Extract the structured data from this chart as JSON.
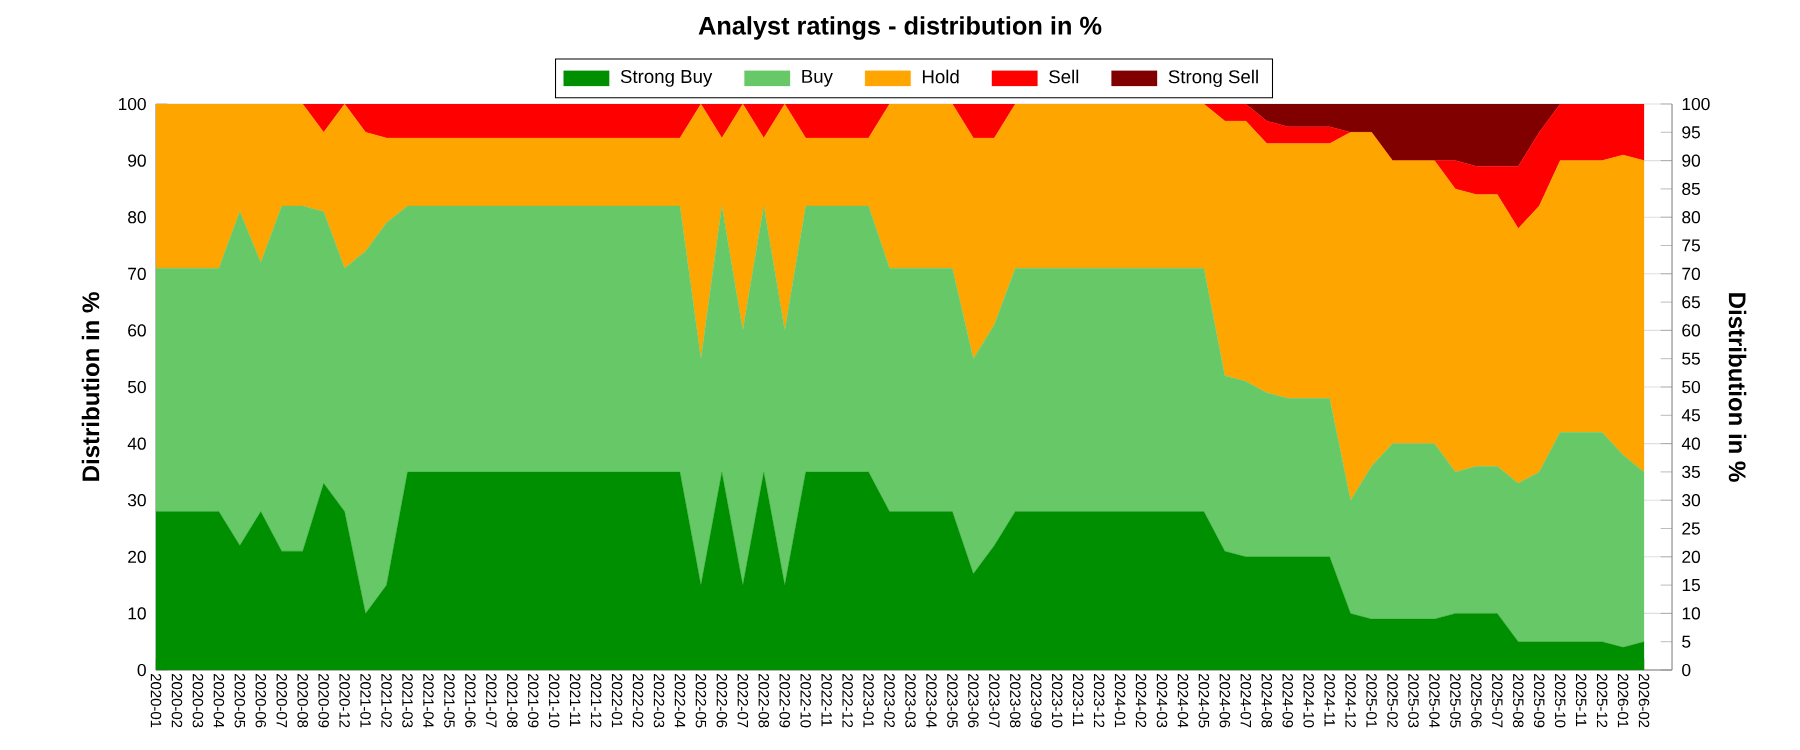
{
  "chart_data": {
    "type": "area",
    "stacked": true,
    "title": "Analyst ratings - distribution in %",
    "ylabel": "Distribution in %",
    "y2label": "Distribution in %",
    "categories": [
      "2020-01",
      "2020-02",
      "2020-03",
      "2020-04",
      "2020-05",
      "2020-06",
      "2020-07",
      "2020-08",
      "2020-09",
      "2020-12",
      "2021-01",
      "2021-02",
      "2021-03",
      "2021-04",
      "2021-05",
      "2021-06",
      "2021-07",
      "2021-08",
      "2021-09",
      "2021-10",
      "2021-11",
      "2021-12",
      "2022-01",
      "2022-02",
      "2022-03",
      "2022-04",
      "2022-05",
      "2022-06",
      "2022-07",
      "2022-08",
      "2022-09",
      "2022-10",
      "2022-11",
      "2022-12",
      "2023-01",
      "2023-02",
      "2023-03",
      "2023-04",
      "2023-05",
      "2023-06",
      "2023-07",
      "2023-08",
      "2023-09",
      "2023-10",
      "2023-11",
      "2023-12",
      "2024-01",
      "2024-02",
      "2024-03",
      "2024-04",
      "2024-05",
      "2024-06",
      "2024-07",
      "2024-08",
      "2024-09",
      "2024-10",
      "2024-11",
      "2024-12",
      "2025-01",
      "2025-02",
      "2025-03",
      "2025-04",
      "2025-05",
      "2025-06",
      "2025-07",
      "2025-08",
      "2025-09",
      "2025-10",
      "2025-11",
      "2025-12",
      "2026-01",
      "2026-02"
    ],
    "series": [
      {
        "name": "Strong Buy",
        "color": "#008f00",
        "values": [
          28,
          28,
          28,
          28,
          22,
          28,
          21,
          21,
          33,
          28,
          10,
          15,
          35,
          35,
          35,
          35,
          35,
          35,
          35,
          35,
          35,
          35,
          35,
          35,
          35,
          35,
          15,
          35,
          15,
          35,
          15,
          35,
          35,
          35,
          35,
          28,
          28,
          28,
          28,
          17,
          22,
          28,
          28,
          28,
          28,
          28,
          28,
          28,
          28,
          28,
          28,
          21,
          20,
          20,
          20,
          20,
          20,
          10,
          9,
          9,
          9,
          9,
          10,
          10,
          10,
          5,
          5,
          5,
          5,
          5,
          4,
          5
        ]
      },
      {
        "name": "Buy",
        "color": "#66c866",
        "values": [
          43,
          43,
          43,
          43,
          59,
          44,
          61,
          61,
          48,
          43,
          64,
          64,
          47,
          47,
          47,
          47,
          47,
          47,
          47,
          47,
          47,
          47,
          47,
          47,
          47,
          47,
          40,
          47,
          45,
          47,
          45,
          47,
          47,
          47,
          47,
          43,
          43,
          43,
          43,
          38,
          39,
          43,
          43,
          43,
          43,
          43,
          43,
          43,
          43,
          43,
          43,
          31,
          31,
          29,
          28,
          28,
          28,
          20,
          27,
          31,
          31,
          31,
          25,
          26,
          26,
          28,
          30,
          37,
          37,
          37,
          34,
          30
        ]
      },
      {
        "name": "Hold",
        "color": "#ffa500",
        "values": [
          29,
          29,
          29,
          29,
          19,
          28,
          18,
          18,
          14,
          29,
          21,
          15,
          12,
          12,
          12,
          12,
          12,
          12,
          12,
          12,
          12,
          12,
          12,
          12,
          12,
          12,
          45,
          12,
          40,
          12,
          40,
          12,
          12,
          12,
          12,
          29,
          29,
          29,
          29,
          39,
          33,
          29,
          29,
          29,
          29,
          29,
          29,
          29,
          29,
          29,
          29,
          45,
          46,
          44,
          45,
          45,
          45,
          65,
          59,
          50,
          50,
          50,
          50,
          48,
          48,
          45,
          47,
          48,
          48,
          48,
          53,
          55
        ]
      },
      {
        "name": "Sell",
        "color": "#ff0000",
        "values": [
          0,
          0,
          0,
          0,
          0,
          0,
          0,
          0,
          5,
          0,
          5,
          6,
          6,
          6,
          6,
          6,
          6,
          6,
          6,
          6,
          6,
          6,
          6,
          6,
          6,
          6,
          0,
          6,
          0,
          6,
          0,
          6,
          6,
          6,
          6,
          0,
          0,
          0,
          0,
          6,
          6,
          0,
          0,
          0,
          0,
          0,
          0,
          0,
          0,
          0,
          0,
          3,
          3,
          4,
          3,
          3,
          3,
          0,
          0,
          0,
          0,
          0,
          5,
          5,
          5,
          11,
          13,
          10,
          10,
          10,
          9,
          10
        ]
      },
      {
        "name": "Strong Sell",
        "color": "#800000",
        "values": [
          0,
          0,
          0,
          0,
          0,
          0,
          0,
          0,
          0,
          0,
          0,
          0,
          0,
          0,
          0,
          0,
          0,
          0,
          0,
          0,
          0,
          0,
          0,
          0,
          0,
          0,
          0,
          0,
          0,
          0,
          0,
          0,
          0,
          0,
          0,
          0,
          0,
          0,
          0,
          0,
          0,
          0,
          0,
          0,
          0,
          0,
          0,
          0,
          0,
          0,
          0,
          0,
          0,
          3,
          4,
          4,
          4,
          5,
          5,
          10,
          10,
          10,
          10,
          11,
          11,
          11,
          5,
          0,
          0,
          0,
          0,
          0
        ]
      }
    ],
    "ylim": [
      0,
      100
    ],
    "yticks": [
      0,
      10,
      20,
      30,
      40,
      50,
      60,
      70,
      80,
      90,
      100
    ],
    "y2lim": [
      0,
      100
    ],
    "y2ticks": [
      0,
      5,
      10,
      15,
      20,
      25,
      30,
      35,
      40,
      45,
      50,
      55,
      60,
      65,
      70,
      75,
      80,
      85,
      90,
      95,
      100
    ],
    "grid": "y",
    "legend": "top"
  }
}
